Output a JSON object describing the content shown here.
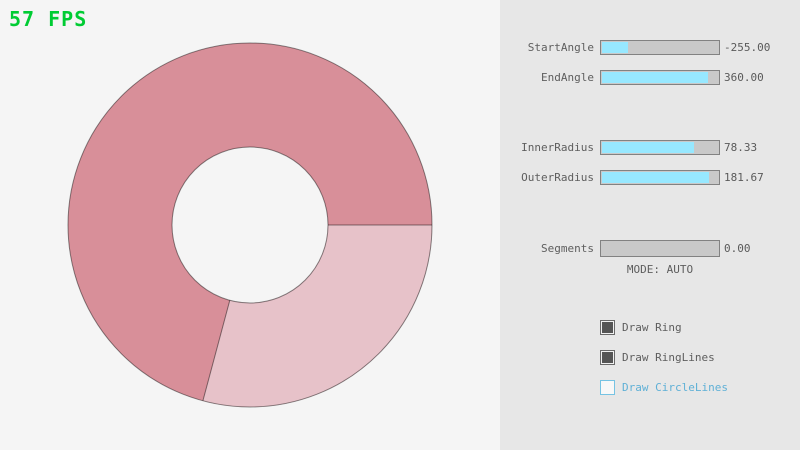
{
  "fps": {
    "label": "57 FPS",
    "color": "#00cc33"
  },
  "ring": {
    "start_angle": -255.0,
    "end_angle": 360.0,
    "inner_radius": 78.33,
    "outer_radius": 181.67,
    "segments": 0,
    "color_overlap": "#d88f99",
    "color_single": "#e7c2c9",
    "outline_color": "rgba(0,0,0,0.45)"
  },
  "panel": {
    "sliders": [
      {
        "label": "StartAngle",
        "value": "-255.00",
        "fill_pct": 21.7
      },
      {
        "label": "EndAngle",
        "value": "360.00",
        "fill_pct": 90
      },
      {
        "label": "InnerRadius",
        "value": "78.33",
        "fill_pct": 78
      },
      {
        "label": "OuterRadius",
        "value": "181.67",
        "fill_pct": 91
      },
      {
        "label": "Segments",
        "value": "0.00",
        "fill_pct": 0
      }
    ],
    "mode_text": "MODE: AUTO",
    "checkboxes": [
      {
        "label": "Draw Ring",
        "checked": true
      },
      {
        "label": "Draw RingLines",
        "checked": true
      },
      {
        "label": "Draw CircleLines",
        "checked": false
      }
    ]
  },
  "colors": {
    "background": "#f5f5f5",
    "panel_background": "#e7e7e7",
    "slider_track": "#c9c9c9",
    "slider_fill": "#97e8ff",
    "slider_border": "#828282",
    "text": "#5e5e5e",
    "checkbox_checked": "#555555",
    "checkbox_blue_border": "#76c3e3",
    "checkbox_blue_text": "#5fb0d6"
  }
}
